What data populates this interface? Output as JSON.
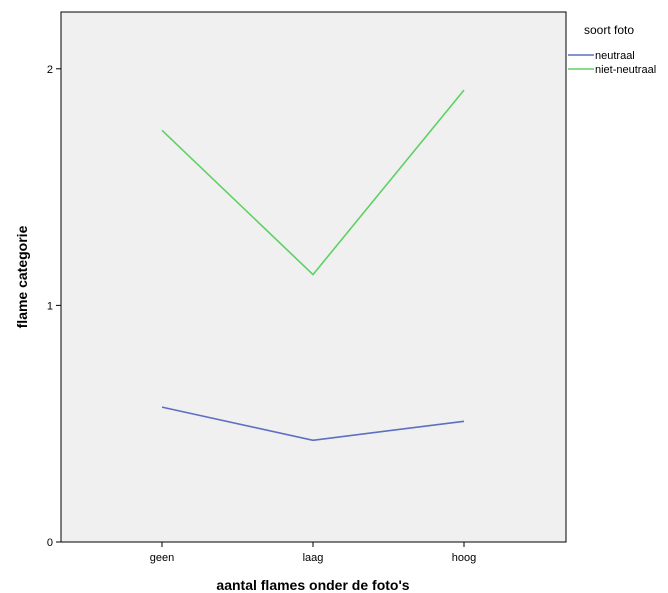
{
  "chart_data": {
    "type": "line",
    "xlabel": "aantal flames onder de foto's",
    "ylabel": "flame categorie",
    "categories": [
      "geen",
      "laag",
      "hoog"
    ],
    "ylim": [
      0,
      2.24
    ],
    "yticks": [
      0,
      1,
      2
    ],
    "grid": false,
    "plot_background": "#f0f0f0",
    "legend": {
      "title": "soort foto",
      "placement": "right"
    },
    "series": [
      {
        "name": "neutraal",
        "color": "#5b6fc4",
        "values": [
          0.57,
          0.43,
          0.51
        ]
      },
      {
        "name": "niet-neutraal",
        "color": "#5dd163",
        "values": [
          1.74,
          1.13,
          1.91
        ]
      }
    ]
  }
}
